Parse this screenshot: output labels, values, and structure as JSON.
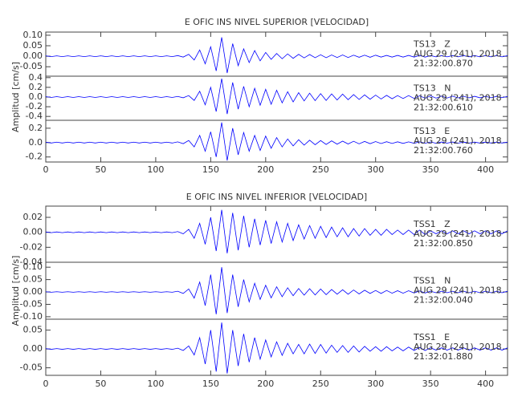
{
  "chart_data": [
    {
      "type": "line",
      "title": "E OFIC INS NIVEL SUPERIOR [VELOCIDAD]",
      "y_label": "Amplitud [cm/s]",
      "color": "#0000ff",
      "xlim": [
        0,
        420
      ],
      "xticks": [
        0,
        50,
        100,
        150,
        200,
        250,
        300,
        350,
        400
      ],
      "x": [
        0,
        5,
        10,
        15,
        20,
        25,
        30,
        35,
        40,
        45,
        50,
        55,
        60,
        65,
        70,
        75,
        80,
        85,
        90,
        95,
        100,
        105,
        110,
        115,
        120,
        125,
        130,
        135,
        140,
        145,
        150,
        155,
        160,
        165,
        170,
        175,
        180,
        185,
        190,
        195,
        200,
        205,
        210,
        215,
        220,
        225,
        230,
        235,
        240,
        245,
        250,
        255,
        260,
        265,
        270,
        275,
        280,
        285,
        290,
        295,
        300,
        305,
        310,
        315,
        320,
        325,
        330,
        335,
        340,
        345,
        350,
        355,
        360,
        365,
        370,
        375,
        380,
        385,
        390,
        395,
        400,
        405,
        410,
        415,
        420
      ],
      "panels": [
        {
          "annotations": [
            "TS13   Z",
            "AUG 29 (241), 2018",
            "21:32:00.870"
          ],
          "ylim": [
            -0.095,
            0.115
          ],
          "yticks": [
            {
              "value": 0.1,
              "label": "0.10"
            },
            0.05,
            {
              "value": 0,
              "label": "0.00"
            },
            -0.05
          ],
          "values": [
            0.002,
            -0.002,
            0.002,
            -0.002,
            0.002,
            -0.002,
            0.002,
            -0.002,
            0.002,
            -0.002,
            0.002,
            -0.002,
            0.002,
            -0.002,
            0.002,
            -0.002,
            0.002,
            -0.002,
            0.002,
            -0.002,
            0.002,
            -0.002,
            0.002,
            -0.002,
            0.003,
            -0.004,
            0.009,
            -0.018,
            0.03,
            -0.036,
            0.045,
            -0.07,
            0.09,
            -0.08,
            0.06,
            -0.045,
            0.035,
            -0.03,
            0.027,
            -0.022,
            0.018,
            -0.015,
            0.013,
            -0.012,
            0.011,
            -0.01,
            0.009,
            -0.008,
            0.008,
            -0.007,
            0.007,
            -0.007,
            0.006,
            -0.006,
            0.006,
            -0.006,
            0.005,
            -0.005,
            0.005,
            -0.005,
            0.005,
            -0.004,
            0.004,
            -0.004,
            0.004,
            -0.004,
            0.004,
            -0.004,
            0.004,
            -0.004,
            0.003,
            -0.003,
            0.003,
            -0.003,
            0.003,
            -0.003,
            0.003,
            -0.003,
            0.003,
            -0.003,
            0.003,
            -0.003,
            0.003,
            -0.003,
            0.003
          ]
        },
        {
          "annotations": [
            "TS13   N",
            "AUG 29 (241), 2018",
            "21:32:00.610"
          ],
          "ylim": [
            -0.48,
            0.43
          ],
          "yticks": [
            0.4,
            0.2,
            {
              "value": 0,
              "label": "0.0"
            },
            -0.2,
            -0.4
          ],
          "values": [
            0.008,
            -0.008,
            0.008,
            -0.008,
            0.008,
            -0.008,
            0.008,
            -0.008,
            0.008,
            -0.008,
            0.008,
            -0.008,
            0.008,
            -0.008,
            0.008,
            -0.008,
            0.008,
            -0.008,
            0.008,
            -0.008,
            0.008,
            -0.008,
            0.008,
            -0.008,
            0.012,
            -0.015,
            0.03,
            -0.07,
            0.12,
            -0.16,
            0.2,
            -0.3,
            0.38,
            -0.35,
            0.3,
            -0.25,
            0.22,
            -0.2,
            0.18,
            -0.17,
            0.16,
            -0.15,
            0.14,
            -0.12,
            0.11,
            -0.1,
            0.09,
            -0.08,
            0.08,
            -0.075,
            0.07,
            -0.07,
            0.065,
            -0.06,
            0.06,
            -0.055,
            0.05,
            -0.05,
            0.045,
            -0.045,
            0.04,
            -0.04,
            0.035,
            -0.035,
            0.03,
            -0.03,
            0.03,
            -0.028,
            0.026,
            -0.025,
            0.024,
            -0.022,
            0.02,
            -0.02,
            0.018,
            -0.018,
            0.016,
            -0.016,
            0.015,
            -0.015,
            0.014,
            -0.014,
            0.013,
            -0.013,
            0.012
          ]
        },
        {
          "annotations": [
            "TS13   E",
            "AUG 29 (241), 2018",
            "21:32:00.760"
          ],
          "ylim": [
            -0.27,
            0.31
          ],
          "yticks": [
            0.2,
            {
              "value": 0,
              "label": "0.0"
            },
            -0.2
          ],
          "values": [
            0.006,
            -0.006,
            0.006,
            -0.006,
            0.006,
            -0.006,
            0.006,
            -0.006,
            0.006,
            -0.006,
            0.006,
            -0.006,
            0.006,
            -0.006,
            0.006,
            -0.006,
            0.006,
            -0.006,
            0.006,
            -0.006,
            0.006,
            -0.006,
            0.006,
            -0.006,
            0.01,
            -0.015,
            0.03,
            -0.06,
            0.1,
            -0.12,
            0.15,
            -0.2,
            0.28,
            -0.25,
            0.2,
            -0.17,
            0.14,
            -0.12,
            0.1,
            -0.11,
            0.09,
            -0.08,
            0.07,
            -0.06,
            0.05,
            -0.045,
            0.04,
            -0.035,
            0.033,
            -0.03,
            0.028,
            -0.026,
            0.024,
            -0.022,
            0.02,
            -0.019,
            0.018,
            -0.017,
            0.016,
            -0.015,
            0.014,
            -0.013,
            0.012,
            -0.012,
            0.011,
            -0.011,
            0.01,
            -0.01,
            0.01,
            -0.009,
            0.009,
            -0.009,
            0.008,
            -0.008,
            0.008,
            -0.008,
            0.007,
            -0.007,
            0.007,
            -0.007,
            0.007,
            -0.006,
            0.006,
            -0.006,
            0.006
          ]
        }
      ]
    },
    {
      "type": "line",
      "title": "E OFIC INS NIVEL INFERIOR [VELOCIDAD]",
      "y_label": "Amplitud [cm/s]",
      "color": "#0000ff",
      "xlim": [
        0,
        420
      ],
      "xticks": [
        0,
        50,
        100,
        150,
        200,
        250,
        300,
        350,
        400
      ],
      "x": [
        0,
        5,
        10,
        15,
        20,
        25,
        30,
        35,
        40,
        45,
        50,
        55,
        60,
        65,
        70,
        75,
        80,
        85,
        90,
        95,
        100,
        105,
        110,
        115,
        120,
        125,
        130,
        135,
        140,
        145,
        150,
        155,
        160,
        165,
        170,
        175,
        180,
        185,
        190,
        195,
        200,
        205,
        210,
        215,
        220,
        225,
        230,
        235,
        240,
        245,
        250,
        255,
        260,
        265,
        270,
        275,
        280,
        285,
        290,
        295,
        300,
        305,
        310,
        315,
        320,
        325,
        330,
        335,
        340,
        345,
        350,
        355,
        360,
        365,
        370,
        375,
        380,
        385,
        390,
        395,
        400,
        405,
        410,
        415,
        420
      ],
      "panels": [
        {
          "annotations": [
            "TSS1   Z",
            "AUG 29 (241), 2018",
            "21:32:00.850"
          ],
          "ylim": [
            -0.04,
            0.035
          ],
          "yticks": [
            0.02,
            {
              "value": 0,
              "label": "0.00"
            },
            -0.02,
            -0.04
          ],
          "values": [
            0.0005,
            -0.0005,
            0.0005,
            -0.0005,
            0.0005,
            -0.0005,
            0.0005,
            -0.0005,
            0.0005,
            -0.0005,
            0.0005,
            -0.0005,
            0.0005,
            -0.0005,
            0.0005,
            -0.0005,
            0.0005,
            -0.0005,
            0.0005,
            -0.0005,
            0.0005,
            -0.0005,
            0.0005,
            -0.0005,
            0.001,
            -0.002,
            0.004,
            -0.008,
            0.012,
            -0.016,
            0.02,
            -0.025,
            0.03,
            -0.028,
            0.026,
            -0.024,
            0.022,
            -0.02,
            0.018,
            -0.017,
            0.016,
            -0.015,
            0.014,
            -0.013,
            0.012,
            -0.011,
            0.01,
            -0.009,
            0.009,
            -0.008,
            0.008,
            -0.007,
            0.007,
            -0.006,
            0.006,
            -0.006,
            0.005,
            -0.005,
            0.005,
            -0.004,
            0.004,
            -0.004,
            0.004,
            -0.003,
            0.003,
            -0.003,
            0.003,
            -0.003,
            0.003,
            -0.003,
            0.002,
            -0.002,
            0.002,
            -0.002,
            0.002,
            -0.002,
            0.002,
            -0.002,
            0.002,
            -0.002,
            0.002,
            -0.002,
            0.002,
            -0.002,
            0.002
          ]
        },
        {
          "annotations": [
            "TSS1   N",
            "AUG 29 (241), 2018",
            "21:32:00.040"
          ],
          "ylim": [
            -0.11,
            0.12
          ],
          "yticks": [
            {
              "value": 0.1,
              "label": "0.10"
            },
            0.05,
            {
              "value": 0,
              "label": "0.00"
            },
            -0.05,
            {
              "value": -0.1,
              "label": "-0.10"
            }
          ],
          "values": [
            0.001,
            -0.001,
            0.001,
            -0.001,
            0.001,
            -0.001,
            0.001,
            -0.001,
            0.001,
            -0.001,
            0.001,
            -0.001,
            0.001,
            -0.001,
            0.001,
            -0.001,
            0.001,
            -0.001,
            0.001,
            -0.001,
            0.001,
            -0.001,
            0.001,
            -0.001,
            0.003,
            -0.006,
            0.012,
            -0.025,
            0.04,
            -0.055,
            0.07,
            -0.09,
            0.1,
            -0.085,
            0.07,
            -0.06,
            0.05,
            -0.04,
            0.035,
            -0.03,
            0.027,
            -0.024,
            0.021,
            -0.019,
            0.017,
            -0.015,
            0.014,
            -0.013,
            0.013,
            -0.012,
            0.012,
            -0.011,
            0.01,
            -0.009,
            0.009,
            -0.009,
            0.008,
            -0.008,
            0.007,
            -0.006,
            0.006,
            -0.006,
            0.006,
            -0.005,
            0.005,
            -0.005,
            0.005,
            -0.004,
            0.004,
            -0.004,
            0.003,
            -0.003,
            0.003,
            -0.003,
            0.003,
            -0.003,
            0.003,
            -0.003,
            0.003,
            -0.003,
            0.003,
            -0.003,
            0.003,
            -0.003,
            0.003
          ]
        },
        {
          "annotations": [
            "TSS1   E",
            "AUG 29 (241), 2018",
            "21:32:01.880"
          ],
          "ylim": [
            -0.07,
            0.079
          ],
          "yticks": [
            0.05,
            {
              "value": 0,
              "label": "0.00"
            },
            -0.05
          ],
          "values": [
            0.001,
            -0.001,
            0.001,
            -0.001,
            0.001,
            -0.001,
            0.001,
            -0.001,
            0.001,
            -0.001,
            0.001,
            -0.001,
            0.001,
            -0.001,
            0.001,
            -0.001,
            0.001,
            -0.001,
            0.001,
            -0.001,
            0.001,
            -0.001,
            0.001,
            -0.001,
            0.002,
            -0.004,
            0.008,
            -0.016,
            0.03,
            -0.04,
            0.05,
            -0.06,
            0.07,
            -0.065,
            0.05,
            -0.045,
            0.04,
            -0.035,
            0.03,
            -0.027,
            0.024,
            -0.021,
            0.019,
            -0.017,
            0.015,
            -0.013,
            0.012,
            -0.013,
            0.013,
            -0.012,
            0.012,
            -0.011,
            0.01,
            -0.009,
            0.009,
            -0.009,
            0.008,
            -0.008,
            0.007,
            -0.006,
            0.006,
            -0.006,
            0.006,
            -0.005,
            0.005,
            -0.005,
            0.005,
            -0.004,
            0.004,
            -0.004,
            0.003,
            -0.003,
            0.003,
            -0.003,
            0.003,
            -0.003,
            0.003,
            -0.003,
            0.003,
            -0.003,
            0.003,
            -0.003,
            0.003,
            -0.003,
            0.003
          ]
        }
      ]
    }
  ]
}
